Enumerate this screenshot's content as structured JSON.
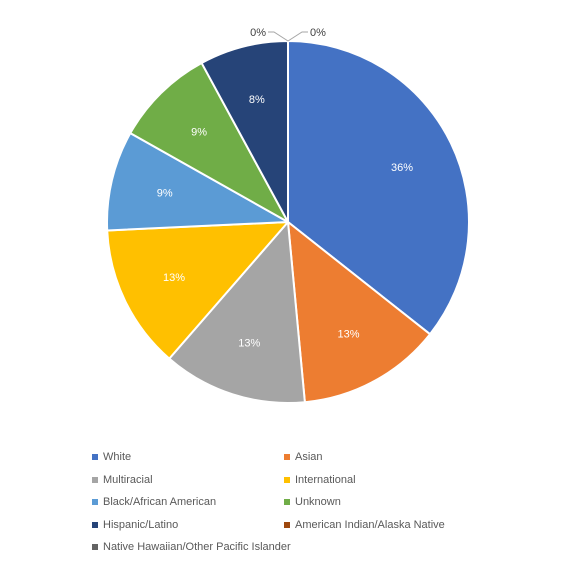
{
  "chart_data": {
    "type": "pie",
    "title": "",
    "categories": [
      "White",
      "Asian",
      "Multiracial",
      "International",
      "Black/African American",
      "Unknown",
      "Hispanic/Latino",
      "American Indian/Alaska Native",
      "Native Hawaiian/Other Pacific Islander"
    ],
    "values": [
      36,
      13,
      13,
      13,
      9,
      9,
      8,
      0,
      0
    ],
    "labels": [
      "36%",
      "13%",
      "13%",
      "13%",
      "9%",
      "9%",
      "8%",
      "0%",
      "0%"
    ],
    "colors": [
      "#4472C4",
      "#ED7D31",
      "#A5A5A5",
      "#FFC000",
      "#5B9BD5",
      "#70AD47",
      "#264478",
      "#9E480E",
      "#636363"
    ],
    "legend_position": "bottom"
  }
}
